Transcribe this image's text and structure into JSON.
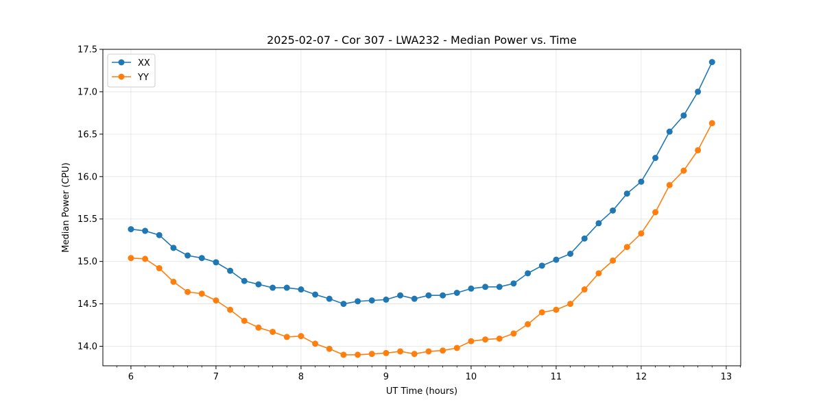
{
  "chart_data": {
    "type": "line",
    "title": "2025-02-07 - Cor 307 - LWA232 - Median Power vs. Time",
    "xlabel": "UT Time (hours)",
    "ylabel": "Median Power (CPU)",
    "xlim": [
      5.67,
      13.17
    ],
    "ylim": [
      13.77,
      17.5
    ],
    "xticks": [
      6,
      7,
      8,
      9,
      10,
      11,
      12,
      13
    ],
    "yticks": [
      14.0,
      14.5,
      15.0,
      15.5,
      16.0,
      16.5,
      17.0,
      17.5
    ],
    "ytick_labels": [
      "14.0",
      "14.5",
      "15.0",
      "15.5",
      "16.0",
      "16.5",
      "17.0",
      "17.5"
    ],
    "grid": true,
    "legend_position": "top-left",
    "x": [
      6.0,
      6.1667,
      6.3333,
      6.5,
      6.6667,
      6.8333,
      7.0,
      7.1667,
      7.3333,
      7.5,
      7.6667,
      7.8333,
      8.0,
      8.1667,
      8.3333,
      8.5,
      8.6667,
      8.8333,
      9.0,
      9.1667,
      9.3333,
      9.5,
      9.6667,
      9.8333,
      10.0,
      10.1667,
      10.3333,
      10.5,
      10.6667,
      10.8333,
      11.0,
      11.1667,
      11.3333,
      11.5,
      11.6667,
      11.8333,
      12.0,
      12.1667,
      12.3333,
      12.5,
      12.6667,
      12.8333
    ],
    "series": [
      {
        "name": "XX",
        "color": "#1f77b4",
        "values": [
          15.38,
          15.36,
          15.31,
          15.16,
          15.07,
          15.04,
          14.99,
          14.89,
          14.77,
          14.73,
          14.69,
          14.69,
          14.67,
          14.61,
          14.56,
          14.5,
          14.53,
          14.54,
          14.55,
          14.6,
          14.56,
          14.6,
          14.6,
          14.63,
          14.68,
          14.7,
          14.7,
          14.74,
          14.86,
          14.95,
          15.02,
          15.09,
          15.27,
          15.45,
          15.6,
          15.8,
          15.94,
          16.22,
          16.53,
          16.72,
          17.0,
          17.35
        ]
      },
      {
        "name": "YY",
        "color": "#ff7f0e",
        "values": [
          15.04,
          15.03,
          14.92,
          14.76,
          14.64,
          14.62,
          14.54,
          14.43,
          14.3,
          14.22,
          14.17,
          14.11,
          14.12,
          14.03,
          13.97,
          13.9,
          13.9,
          13.91,
          13.92,
          13.94,
          13.91,
          13.94,
          13.95,
          13.98,
          14.06,
          14.08,
          14.09,
          14.15,
          14.26,
          14.4,
          14.43,
          14.5,
          14.67,
          14.86,
          15.01,
          15.17,
          15.33,
          15.58,
          15.9,
          16.07,
          16.31,
          16.63
        ]
      }
    ]
  }
}
